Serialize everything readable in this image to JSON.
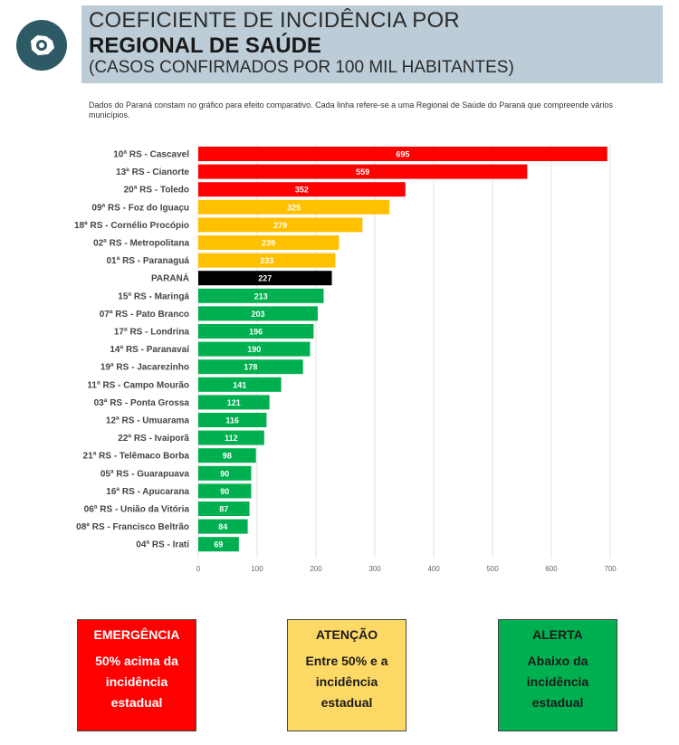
{
  "header": {
    "line1": "COEFICIENTE DE INCIDÊNCIA POR",
    "line2": "REGIONAL DE SAÚDE",
    "line3": "(CASOS CONFIRMADOS POR 100 MIL HABITANTES)",
    "logo_icon": "virus-icon"
  },
  "note": "Dados do Paraná constam no gráfico para efeito comparativo. Cada linha refere-se a uma Regional de Saúde do Paraná que compreende vários municípios.",
  "colors": {
    "emergencia": "#ff0000",
    "atencao": "#ffc000",
    "alerta": "#00b050",
    "parana": "#000000",
    "header_band": "#bccdd7"
  },
  "chart_data": {
    "type": "bar",
    "orientation": "horizontal",
    "title": "",
    "xlabel": "",
    "ylabel": "",
    "xlim": [
      0,
      700
    ],
    "ticks": [
      0,
      100,
      200,
      300,
      400,
      500,
      600,
      700
    ],
    "grid": true,
    "categories": [
      "10ª RS - Cascavel",
      "13ª RS - Cianorte",
      "20ª RS - Toledo",
      "09ª RS - Foz do Iguaçu",
      "18ª RS - Cornélio Procópio",
      "02ª RS - Metropolitana",
      "01ª RS - Paranaguá",
      "PARANÁ",
      "15ª RS - Maringá",
      "07ª RS - Pato Branco",
      "17ª RS - Londrina",
      "14ª RS - Paranavaí",
      "19ª RS - Jacarezinho",
      "11ª RS - Campo Mourão",
      "03ª RS - Ponta Grossa",
      "12ª RS - Umuarama",
      "22ª RS - Ivaiporã",
      "21ª RS - Telêmaco Borba",
      "05ª RS - Guarapuava",
      "16ª RS - Apucarana",
      "06ª RS - União da Vitória",
      "08ª RS - Francisco Beltrão",
      "04ª RS - Irati"
    ],
    "values": [
      695,
      559,
      352,
      325,
      279,
      239,
      233,
      227,
      213,
      203,
      196,
      190,
      178,
      141,
      121,
      116,
      112,
      98,
      90,
      90,
      87,
      84,
      69
    ],
    "value_labels": [
      "695",
      "559",
      "352",
      "325",
      "279",
      "239",
      "233",
      "227",
      "213",
      "203",
      "196",
      "190",
      "178",
      "141",
      "121",
      "116",
      "112",
      "98",
      "90",
      "90",
      "87",
      "84",
      "69"
    ],
    "bar_colors": [
      "#ff0000",
      "#ff0000",
      "#ff0000",
      "#ffc000",
      "#ffc000",
      "#ffc000",
      "#ffc000",
      "#000000",
      "#00b050",
      "#00b050",
      "#00b050",
      "#00b050",
      "#00b050",
      "#00b050",
      "#00b050",
      "#00b050",
      "#00b050",
      "#00b050",
      "#00b050",
      "#00b050",
      "#00b050",
      "#00b050",
      "#00b050"
    ]
  },
  "legend": [
    {
      "title": "EMERGÊNCIA",
      "desc": "50% acima da incidência estadual",
      "bg": "#ff0000",
      "title_color": "#ffffff",
      "desc_color": "#ffffff"
    },
    {
      "title": "ATENÇÃO",
      "desc": "Entre 50% e a incidência estadual",
      "bg": "#ffd966",
      "title_color": "#1a1a1a",
      "desc_color": "#1a1a1a"
    },
    {
      "title": "ALERTA",
      "desc": "Abaixo da incidência estadual",
      "bg": "#00b050",
      "title_color": "#1a1a1a",
      "desc_color": "#1a1a1a"
    }
  ]
}
